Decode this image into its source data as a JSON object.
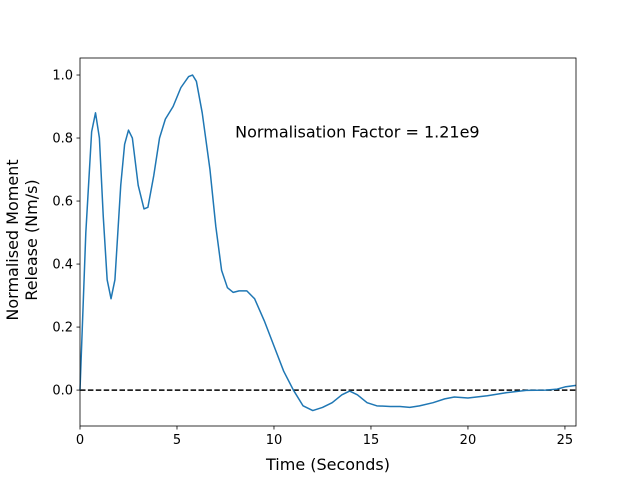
{
  "chart_data": {
    "type": "line",
    "xlabel": "Time (Seconds)",
    "ylabel": [
      "Normalised Moment",
      "Release (Nm/s)"
    ],
    "annotation": {
      "text": "Normalisation Factor = 1.21e9",
      "x": 8,
      "y": 0.82
    },
    "hline": {
      "value": 0,
      "color": "#000000",
      "style": "dashed"
    },
    "xlim": [
      0,
      25.57
    ],
    "ylim": [
      -0.114,
      1.054
    ],
    "xticks": [
      0,
      5,
      10,
      15,
      20,
      25
    ],
    "yticks": [
      {
        "value": 0,
        "label": "0.0"
      },
      {
        "value": 0.2,
        "label": "0.2"
      },
      {
        "value": 0.4,
        "label": "0.4"
      },
      {
        "value": 0.6,
        "label": "0.6"
      },
      {
        "value": 0.8,
        "label": "0.8"
      },
      {
        "value": 1.0,
        "label": "1.0"
      }
    ],
    "x": [
      0,
      0.3,
      0.6,
      0.8,
      1.0,
      1.2,
      1.4,
      1.6,
      1.8,
      2.1,
      2.3,
      2.5,
      2.7,
      3.0,
      3.3,
      3.5,
      3.8,
      4.1,
      4.4,
      4.8,
      5.2,
      5.6,
      5.8,
      6.0,
      6.3,
      6.7,
      7.0,
      7.3,
      7.6,
      7.9,
      8.2,
      8.6,
      9.0,
      9.5,
      10.0,
      10.5,
      11.0,
      11.5,
      12.0,
      12.5,
      13.0,
      13.5,
      13.9,
      14.3,
      14.8,
      15.3,
      16.0,
      16.5,
      17.0,
      17.5,
      18.2,
      18.8,
      19.3,
      20.0,
      21.0,
      22.0,
      23.0,
      24.0,
      24.6,
      25.0,
      25.57
    ],
    "series": [
      {
        "name": "moment release",
        "color": "#1f77b4",
        "values": [
          0.0,
          0.5,
          0.82,
          0.88,
          0.8,
          0.55,
          0.35,
          0.29,
          0.35,
          0.65,
          0.78,
          0.825,
          0.8,
          0.65,
          0.575,
          0.58,
          0.68,
          0.8,
          0.86,
          0.9,
          0.96,
          0.995,
          1.0,
          0.98,
          0.88,
          0.7,
          0.52,
          0.38,
          0.325,
          0.31,
          0.315,
          0.315,
          0.29,
          0.22,
          0.14,
          0.06,
          0.0,
          -0.05,
          -0.065,
          -0.055,
          -0.04,
          -0.015,
          -0.003,
          -0.015,
          -0.04,
          -0.05,
          -0.052,
          -0.052,
          -0.055,
          -0.05,
          -0.04,
          -0.028,
          -0.022,
          -0.025,
          -0.018,
          -0.008,
          -0.001,
          0.0,
          0.003,
          0.01,
          0.015
        ]
      }
    ]
  }
}
